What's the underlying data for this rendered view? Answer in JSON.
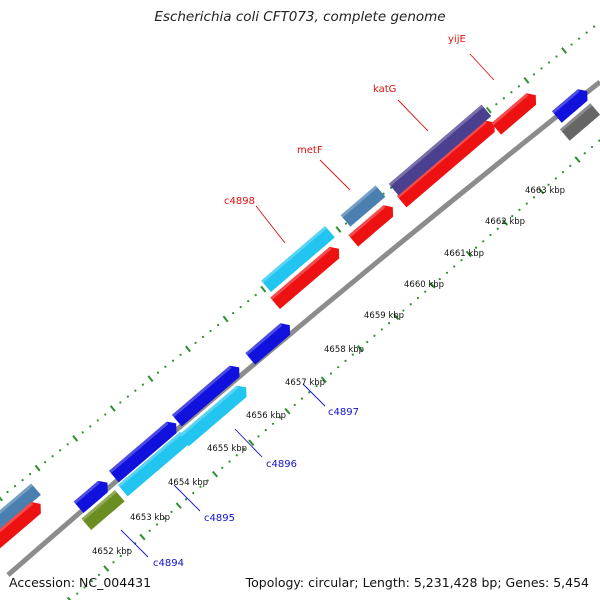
{
  "title": "Escherichia coli CFT073, complete genome",
  "footer": {
    "accession": "Accession: NC_004431",
    "summary": "Topology: circular; Length: 5,231,428 bp; Genes: 5,454"
  },
  "colors": {
    "backbone": "#8c8c8c",
    "outer_ticks": "#2f8f2f",
    "inner_ticks": "#2f8f2f",
    "label_red": "#dd1111",
    "label_blue": "#1111cc"
  },
  "scale_labels": [
    "4652 kbp",
    "4653 kbp",
    "4654 kbp",
    "4655 kbp",
    "4656 kbp",
    "4657 kbp",
    "4658 kbp",
    "4659 kbp",
    "4660 kbp",
    "4661 kbp",
    "4662 kbp",
    "4663 kbp"
  ],
  "gene_labels": [
    {
      "text": "yijE",
      "color": "red"
    },
    {
      "text": "katG",
      "color": "red"
    },
    {
      "text": "metF",
      "color": "red"
    },
    {
      "text": "c4898",
      "color": "red"
    },
    {
      "text": "c4897",
      "color": "blue"
    },
    {
      "text": "c4896",
      "color": "blue"
    },
    {
      "text": "c4895",
      "color": "blue"
    },
    {
      "text": "c4894",
      "color": "blue"
    }
  ],
  "features": [
    {
      "name": "gene-steelblue-left",
      "color": "#4a7fb0"
    },
    {
      "name": "gene-red-left",
      "color": "#ee1111"
    },
    {
      "name": "gene-olive",
      "color": "#6b8e23"
    },
    {
      "name": "gene-blue-c4894",
      "color": "#1111dd"
    },
    {
      "name": "gene-cyan-c4895",
      "color": "#22c4f0"
    },
    {
      "name": "gene-blue-c4896a",
      "color": "#1111dd"
    },
    {
      "name": "gene-cyan-c4896",
      "color": "#22c4f0"
    },
    {
      "name": "gene-blue-c4896b",
      "color": "#1111dd"
    },
    {
      "name": "gene-blue-c4897",
      "color": "#1111dd"
    },
    {
      "name": "gene-red-c4898",
      "color": "#ee1111"
    },
    {
      "name": "gene-cyan-c4898",
      "color": "#22c4f0"
    },
    {
      "name": "gene-red-metF",
      "color": "#ee1111"
    },
    {
      "name": "gene-steelblue-metF",
      "color": "#4a7fb0"
    },
    {
      "name": "gene-red-katG",
      "color": "#ee1111"
    },
    {
      "name": "gene-purple-katG",
      "color": "#4b3f8f"
    },
    {
      "name": "gene-red-yijE",
      "color": "#ee1111"
    },
    {
      "name": "gene-blue-edge",
      "color": "#1111dd"
    },
    {
      "name": "gene-gray-edge",
      "color": "#666666"
    }
  ]
}
